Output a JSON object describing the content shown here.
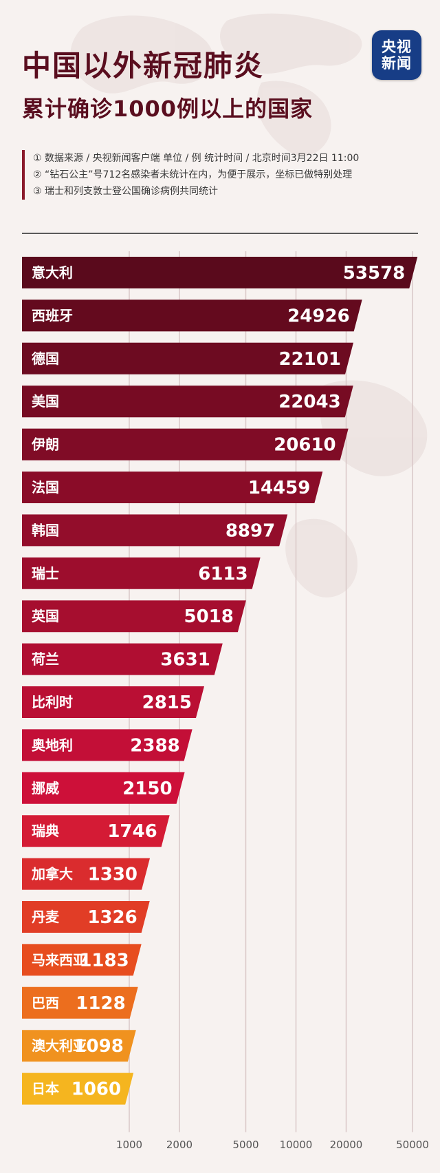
{
  "header": {
    "title": "中国以外新冠肺炎",
    "subtitle": "累计确诊1000例以上的国家"
  },
  "logo": {
    "line1": "央视",
    "line2": "新闻"
  },
  "notes": [
    "① 数据来源 / 央视新闻客户端  单位 / 例   统计时间 / 北京时间3月22日 11:00",
    "② “钻石公主”号712名感染者未统计在内，为便于展示，坐标已做特别处理",
    "③ 瑞士和列支敦士登公国确诊病例共同统计"
  ],
  "colors": {
    "title": "#5a0e1f",
    "logo_bg": "#173d86",
    "bar_top": "#5a0a1c",
    "bar_mid": "#d0103a",
    "bar_low": "#e8501e",
    "bar_bottom": "#f5b51f",
    "gridline": "#d9c7c7"
  },
  "chart_data": {
    "type": "bar",
    "orientation": "horizontal",
    "scale": "log",
    "categories": [
      "意大利",
      "西班牙",
      "德国",
      "美国",
      "伊朗",
      "法国",
      "韩国",
      "瑞士",
      "英国",
      "荷兰",
      "比利时",
      "奥地利",
      "挪威",
      "瑞典",
      "加拿大",
      "丹麦",
      "马来西亚",
      "巴西",
      "澳大利亚",
      "日本"
    ],
    "values": [
      53578,
      24926,
      22101,
      22043,
      20610,
      14459,
      8897,
      6113,
      5018,
      3631,
      2815,
      2388,
      2150,
      1746,
      1330,
      1326,
      1183,
      1128,
      1098,
      1060
    ],
    "xticks": [
      1000,
      2000,
      5000,
      10000,
      20000,
      50000
    ],
    "xtick_labels": [
      "1000",
      "2000",
      "5000",
      "10000",
      "20000",
      "50000"
    ],
    "xlim": [
      500,
      55000
    ],
    "grid": true
  }
}
